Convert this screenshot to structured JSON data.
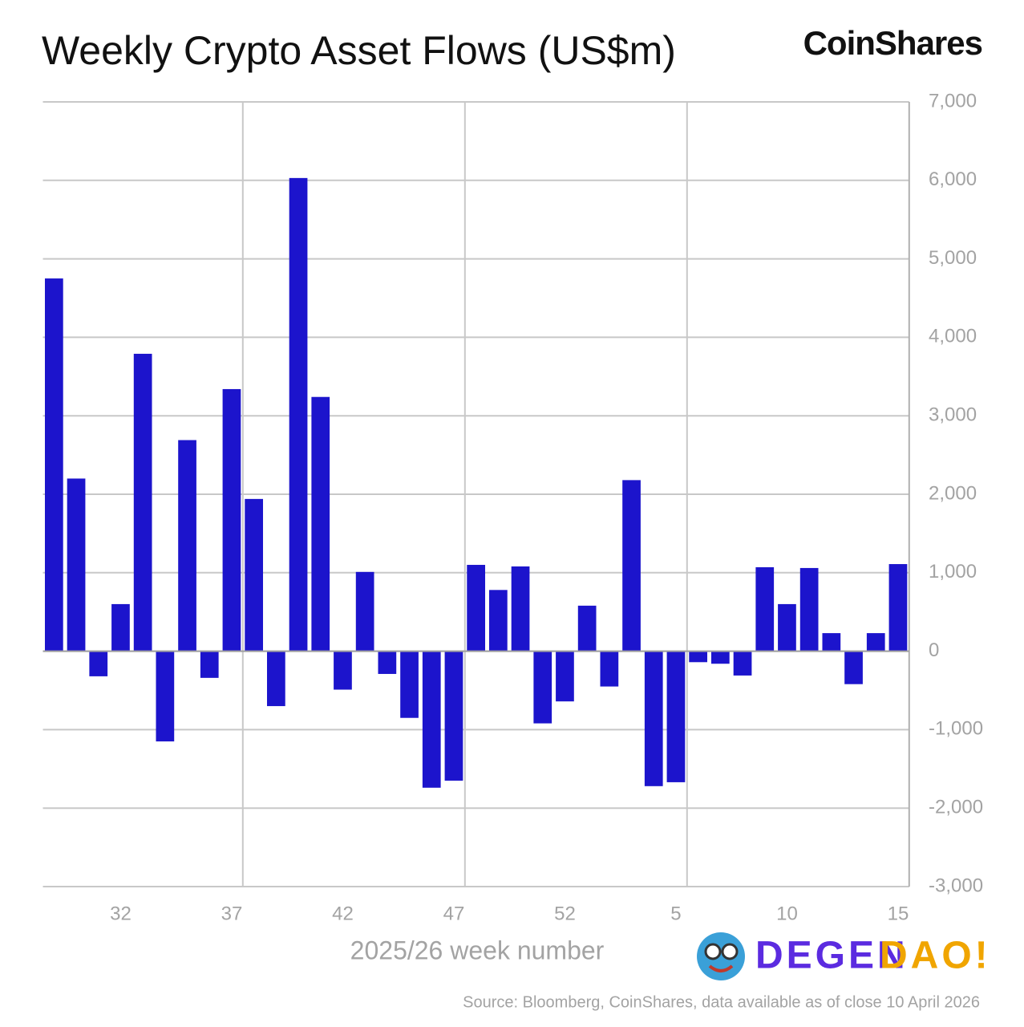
{
  "chart_data": {
    "type": "bar",
    "title": "Weekly Crypto Asset Flows (US$m)",
    "brand": "CoinShares",
    "x_label": "2025/26 week number",
    "source": "Source: Bloomberg, CoinShares, data available as of close 10 April 2026",
    "watermark": [
      "DEGEN",
      "DAO!"
    ],
    "categories": [
      null,
      null,
      null,
      "32",
      null,
      null,
      null,
      null,
      "37",
      null,
      null,
      null,
      null,
      "42",
      null,
      null,
      null,
      null,
      "47",
      null,
      null,
      null,
      null,
      "52",
      null,
      null,
      null,
      null,
      "5",
      null,
      null,
      null,
      null,
      "10",
      null,
      null,
      null,
      null,
      "15"
    ],
    "values": [
      4750,
      2200,
      -320,
      600,
      3790,
      -1150,
      2690,
      -340,
      3340,
      1940,
      -700,
      6030,
      3240,
      -490,
      1010,
      -290,
      -850,
      -1740,
      -1650,
      1100,
      780,
      1080,
      -920,
      -640,
      580,
      -450,
      2180,
      -1720,
      -1670,
      -140,
      -160,
      -310,
      1070,
      600,
      1060,
      230,
      -420,
      230,
      1110
    ],
    "color": "#1c14cc",
    "ylim": [
      -3000,
      7000
    ],
    "yticks": [
      {
        "value": -3000,
        "label": "-3,000"
      },
      {
        "value": -2000,
        "label": "-2,000"
      },
      {
        "value": -1000,
        "label": "-1,000"
      },
      0,
      {
        "value": 1000,
        "label": "1,000"
      },
      {
        "value": 2000,
        "label": "2,000"
      },
      {
        "value": 3000,
        "label": "3,000"
      },
      {
        "value": 4000,
        "label": "4,000"
      },
      {
        "value": 5000,
        "label": "5,000"
      },
      {
        "value": 6000,
        "label": "6,000"
      },
      {
        "value": 7000,
        "label": "7,000"
      }
    ],
    "grid": true
  }
}
